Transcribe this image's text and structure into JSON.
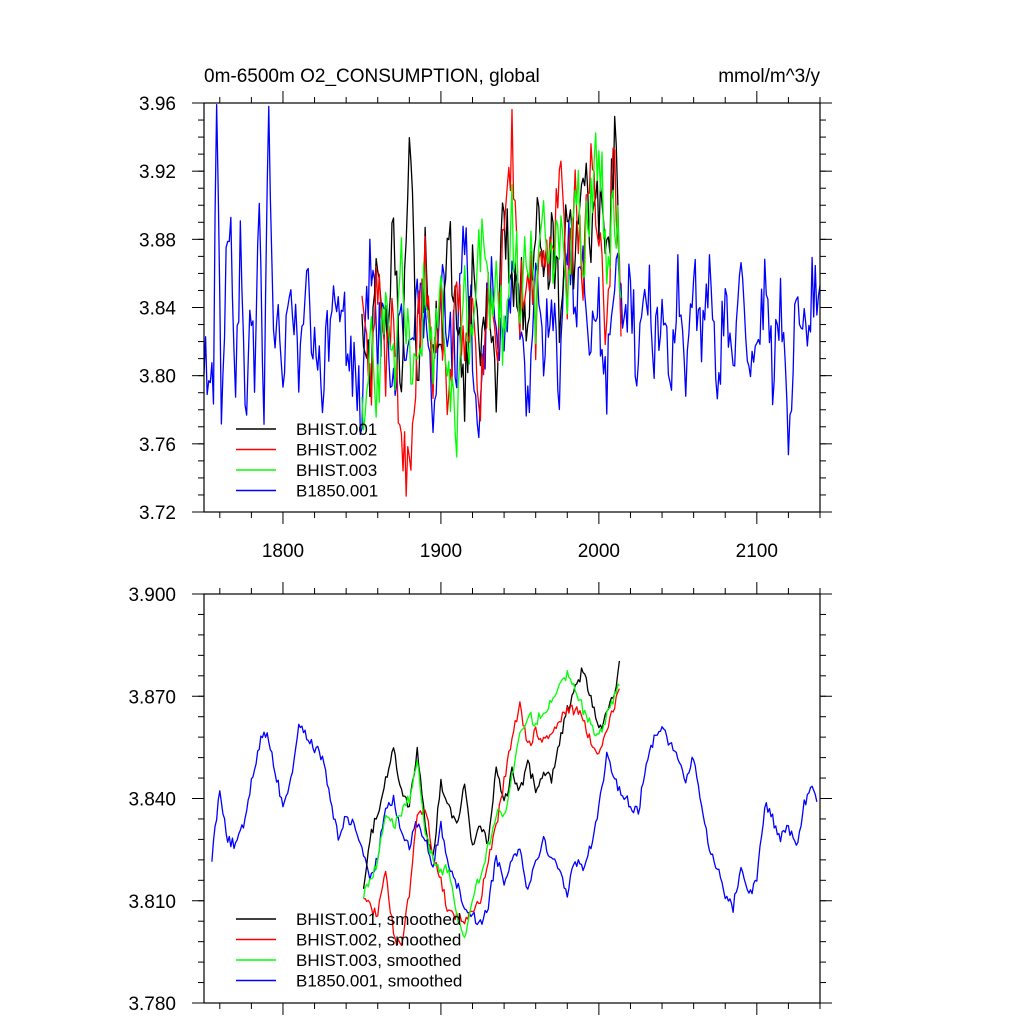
{
  "chart_data": [
    {
      "type": "line",
      "title": "0m-6500m O2_CONSUMPTION, global",
      "units": "mmol/m^3/y",
      "xlim": [
        1750,
        2140
      ],
      "ylim": [
        3.72,
        3.96
      ],
      "x_ticks": [
        1800,
        1900,
        2000,
        2100
      ],
      "x_tick_labels": [
        "1800",
        "1900",
        "2000",
        "2100"
      ],
      "y_ticks": [
        3.72,
        3.76,
        3.8,
        3.84,
        3.88,
        3.92,
        3.96
      ],
      "y_tick_labels": [
        "3.72",
        "3.76",
        "3.80",
        "3.84",
        "3.88",
        "3.92",
        "3.96"
      ],
      "legend_position": "bottom-left",
      "series": [
        {
          "name": "B1850.001",
          "color": "#0000ff",
          "anchors_x": [
            1750,
            1753,
            1756,
            1758,
            1761,
            1764,
            1767,
            1770,
            1773,
            1776,
            1779,
            1782,
            1785,
            1788,
            1791,
            1794,
            1797,
            1800,
            1805,
            1810,
            1815,
            1820,
            1825,
            1830,
            1835,
            1840,
            1845,
            1850,
            1855,
            1860,
            1865,
            1870,
            1875,
            1880,
            1885,
            1890,
            1895,
            1900,
            1905,
            1910,
            1915,
            1920,
            1925,
            1930,
            1935,
            1940,
            1945,
            1950,
            1955,
            1960,
            1965,
            1970,
            1975,
            1980,
            1985,
            1990,
            1995,
            2000,
            2005,
            2010,
            2015,
            2020,
            2025,
            2030,
            2035,
            2040,
            2045,
            2050,
            2055,
            2060,
            2065,
            2070,
            2075,
            2080,
            2085,
            2090,
            2095,
            2100,
            2105,
            2110,
            2115,
            2120,
            2125,
            2130,
            2135,
            2140
          ],
          "anchors_y": [
            3.795,
            3.815,
            3.8,
            3.957,
            3.79,
            3.86,
            3.885,
            3.8,
            3.88,
            3.765,
            3.85,
            3.8,
            3.9,
            3.78,
            3.958,
            3.82,
            3.84,
            3.79,
            3.86,
            3.8,
            3.85,
            3.81,
            3.79,
            3.84,
            3.86,
            3.82,
            3.8,
            3.78,
            3.87,
            3.82,
            3.85,
            3.79,
            3.84,
            3.8,
            3.86,
            3.82,
            3.78,
            3.85,
            3.83,
            3.81,
            3.88,
            3.82,
            3.77,
            3.86,
            3.84,
            3.8,
            3.87,
            3.83,
            3.78,
            3.86,
            3.82,
            3.85,
            3.8,
            3.88,
            3.83,
            3.86,
            3.81,
            3.84,
            3.79,
            3.87,
            3.83,
            3.85,
            3.8,
            3.86,
            3.82,
            3.84,
            3.8,
            3.85,
            3.79,
            3.86,
            3.82,
            3.85,
            3.8,
            3.84,
            3.81,
            3.86,
            3.79,
            3.83,
            3.85,
            3.8,
            3.84,
            3.76,
            3.86,
            3.82,
            3.85,
            3.84
          ]
        },
        {
          "name": "BHIST.001",
          "color": "#000000",
          "anchors_x": [
            1850,
            1855,
            1860,
            1865,
            1870,
            1875,
            1880,
            1885,
            1890,
            1895,
            1900,
            1905,
            1910,
            1915,
            1920,
            1925,
            1930,
            1935,
            1940,
            1945,
            1950,
            1955,
            1960,
            1965,
            1970,
            1975,
            1980,
            1985,
            1990,
            1995,
            2000,
            2005,
            2010,
            2014
          ],
          "anchors_y": [
            3.83,
            3.8,
            3.87,
            3.82,
            3.88,
            3.8,
            3.955,
            3.79,
            3.87,
            3.83,
            3.81,
            3.88,
            3.84,
            3.79,
            3.86,
            3.82,
            3.85,
            3.8,
            3.9,
            3.84,
            3.86,
            3.83,
            3.9,
            3.85,
            3.88,
            3.84,
            3.91,
            3.86,
            3.935,
            3.87,
            3.9,
            3.86,
            3.94,
            3.85
          ]
        },
        {
          "name": "BHIST.002",
          "color": "#ff0000",
          "anchors_x": [
            1850,
            1855,
            1860,
            1865,
            1870,
            1875,
            1880,
            1885,
            1890,
            1895,
            1900,
            1905,
            1910,
            1915,
            1920,
            1925,
            1930,
            1935,
            1940,
            1945,
            1950,
            1955,
            1960,
            1965,
            1970,
            1975,
            1980,
            1985,
            1990,
            1995,
            2000,
            2005,
            2010,
            2014
          ],
          "anchors_y": [
            3.84,
            3.79,
            3.86,
            3.8,
            3.84,
            3.76,
            3.735,
            3.82,
            3.86,
            3.8,
            3.84,
            3.78,
            3.87,
            3.81,
            3.83,
            3.79,
            3.85,
            3.8,
            3.88,
            3.935,
            3.84,
            3.87,
            3.83,
            3.89,
            3.86,
            3.92,
            3.85,
            3.9,
            3.86,
            3.93,
            3.87,
            3.83,
            3.935,
            3.84
          ]
        },
        {
          "name": "BHIST.003",
          "color": "#00ff00",
          "anchors_x": [
            1850,
            1855,
            1860,
            1865,
            1870,
            1875,
            1880,
            1885,
            1890,
            1895,
            1900,
            1905,
            1910,
            1915,
            1920,
            1925,
            1930,
            1935,
            1940,
            1945,
            1950,
            1955,
            1960,
            1965,
            1970,
            1975,
            1980,
            1985,
            1990,
            1995,
            2000,
            2005,
            2010,
            2014
          ],
          "anchors_y": [
            3.78,
            3.82,
            3.79,
            3.85,
            3.8,
            3.86,
            3.82,
            3.79,
            3.86,
            3.81,
            3.84,
            3.79,
            3.77,
            3.85,
            3.81,
            3.88,
            3.84,
            3.86,
            3.82,
            3.89,
            3.85,
            3.88,
            3.84,
            3.9,
            3.86,
            3.89,
            3.85,
            3.92,
            3.87,
            3.9,
            3.944,
            3.87,
            3.9,
            3.86
          ]
        }
      ]
    },
    {
      "type": "line",
      "xlim": [
        1750,
        2140
      ],
      "ylim": [
        3.78,
        3.9
      ],
      "y_ticks": [
        3.78,
        3.81,
        3.84,
        3.87,
        3.9
      ],
      "y_tick_labels": [
        "3.780",
        "3.810",
        "3.840",
        "3.870",
        "3.900"
      ],
      "legend_position": "bottom-left",
      "series": [
        {
          "name": "B1850.001, smoothed",
          "color": "#0000ff",
          "anchors_x": [
            1755,
            1760,
            1765,
            1770,
            1775,
            1780,
            1785,
            1790,
            1795,
            1800,
            1805,
            1810,
            1815,
            1820,
            1825,
            1830,
            1835,
            1840,
            1845,
            1850,
            1855,
            1860,
            1865,
            1870,
            1875,
            1880,
            1885,
            1890,
            1895,
            1900,
            1905,
            1910,
            1915,
            1920,
            1925,
            1930,
            1935,
            1940,
            1945,
            1950,
            1955,
            1960,
            1965,
            1970,
            1975,
            1980,
            1985,
            1990,
            1995,
            2000,
            2005,
            2010,
            2015,
            2020,
            2025,
            2030,
            2035,
            2040,
            2045,
            2050,
            2055,
            2060,
            2065,
            2070,
            2075,
            2080,
            2085,
            2090,
            2095,
            2100,
            2105,
            2110,
            2115,
            2120,
            2125,
            2130,
            2135,
            2138
          ],
          "anchors_y": [
            3.823,
            3.843,
            3.828,
            3.826,
            3.832,
            3.845,
            3.856,
            3.86,
            3.848,
            3.838,
            3.845,
            3.862,
            3.858,
            3.855,
            3.852,
            3.84,
            3.828,
            3.835,
            3.832,
            3.826,
            3.815,
            3.823,
            3.838,
            3.84,
            3.83,
            3.826,
            3.833,
            3.828,
            3.82,
            3.832,
            3.821,
            3.815,
            3.808,
            3.806,
            3.803,
            3.809,
            3.823,
            3.816,
            3.822,
            3.826,
            3.813,
            3.822,
            3.828,
            3.822,
            3.82,
            3.812,
            3.822,
            3.82,
            3.826,
            3.838,
            3.852,
            3.845,
            3.842,
            3.838,
            3.836,
            3.85,
            3.858,
            3.862,
            3.856,
            3.852,
            3.845,
            3.852,
            3.838,
            3.825,
            3.82,
            3.812,
            3.808,
            3.82,
            3.812,
            3.816,
            3.838,
            3.834,
            3.828,
            3.832,
            3.825,
            3.838,
            3.845,
            3.838
          ]
        },
        {
          "name": "BHIST.001, smoothed",
          "color": "#000000",
          "anchors_x": [
            1851,
            1855,
            1860,
            1865,
            1870,
            1875,
            1880,
            1885,
            1890,
            1895,
            1900,
            1905,
            1910,
            1915,
            1920,
            1925,
            1930,
            1935,
            1940,
            1945,
            1950,
            1955,
            1960,
            1965,
            1970,
            1975,
            1980,
            1985,
            1990,
            1995,
            2000,
            2005,
            2010,
            2013
          ],
          "anchors_y": [
            3.815,
            3.828,
            3.836,
            3.846,
            3.854,
            3.843,
            3.838,
            3.854,
            3.832,
            3.822,
            3.845,
            3.838,
            3.832,
            3.845,
            3.825,
            3.832,
            3.827,
            3.85,
            3.838,
            3.848,
            3.842,
            3.85,
            3.843,
            3.848,
            3.846,
            3.857,
            3.866,
            3.872,
            3.878,
            3.87,
            3.86,
            3.864,
            3.872,
            3.879
          ]
        },
        {
          "name": "BHIST.002, smoothed",
          "color": "#ff0000",
          "anchors_x": [
            1851,
            1855,
            1860,
            1865,
            1870,
            1875,
            1880,
            1885,
            1890,
            1895,
            1900,
            1905,
            1910,
            1915,
            1920,
            1925,
            1930,
            1935,
            1940,
            1945,
            1950,
            1955,
            1960,
            1965,
            1970,
            1975,
            1980,
            1985,
            1990,
            1995,
            2000,
            2005,
            2010,
            2013
          ],
          "anchors_y": [
            3.812,
            3.808,
            3.806,
            3.82,
            3.8,
            3.796,
            3.812,
            3.835,
            3.838,
            3.823,
            3.816,
            3.806,
            3.806,
            3.804,
            3.806,
            3.81,
            3.822,
            3.832,
            3.845,
            3.858,
            3.867,
            3.855,
            3.86,
            3.857,
            3.858,
            3.863,
            3.866,
            3.866,
            3.864,
            3.856,
            3.854,
            3.86,
            3.868,
            3.872
          ]
        },
        {
          "name": "BHIST.003, smoothed",
          "color": "#00ff00",
          "anchors_x": [
            1851,
            1855,
            1860,
            1865,
            1870,
            1875,
            1880,
            1885,
            1890,
            1895,
            1900,
            1905,
            1910,
            1915,
            1920,
            1925,
            1930,
            1935,
            1940,
            1945,
            1950,
            1955,
            1960,
            1965,
            1970,
            1975,
            1980,
            1985,
            1990,
            1995,
            2000,
            2005,
            2010,
            2013
          ],
          "anchors_y": [
            3.812,
            3.816,
            3.822,
            3.835,
            3.832,
            3.836,
            3.84,
            3.852,
            3.83,
            3.822,
            3.818,
            3.82,
            3.806,
            3.8,
            3.81,
            3.818,
            3.826,
            3.836,
            3.834,
            3.846,
            3.858,
            3.865,
            3.862,
            3.866,
            3.868,
            3.873,
            3.877,
            3.873,
            3.866,
            3.862,
            3.858,
            3.864,
            3.87,
            3.874
          ]
        }
      ]
    }
  ]
}
